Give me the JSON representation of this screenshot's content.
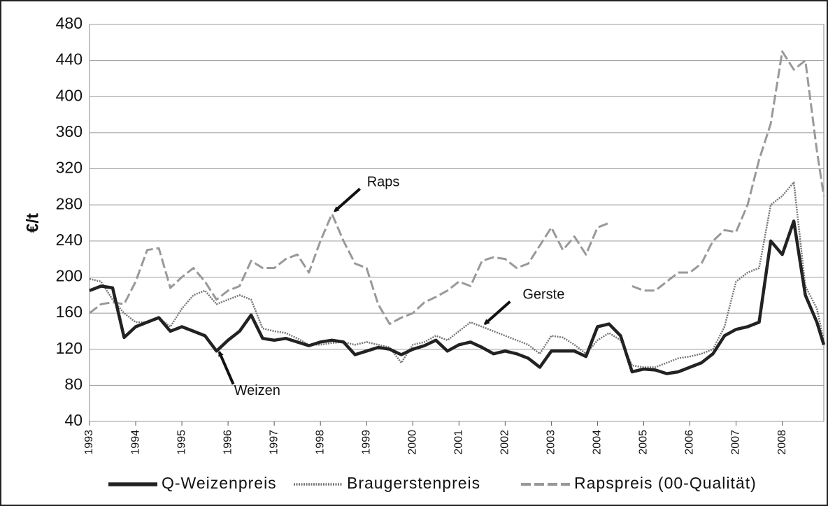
{
  "chart_data": {
    "type": "line",
    "ylabel": "€/t",
    "x": [
      1993,
      1993.25,
      1993.5,
      1993.75,
      1994,
      1994.25,
      1994.5,
      1994.75,
      1995,
      1995.25,
      1995.5,
      1995.75,
      1996,
      1996.25,
      1996.5,
      1996.75,
      1997,
      1997.25,
      1997.5,
      1997.75,
      1998,
      1998.25,
      1998.5,
      1998.75,
      1999,
      1999.25,
      1999.5,
      1999.75,
      2000,
      2000.25,
      2000.5,
      2000.75,
      2001,
      2001.25,
      2001.5,
      2001.75,
      2002,
      2002.25,
      2002.5,
      2002.75,
      2003,
      2003.25,
      2003.5,
      2003.75,
      2004,
      2004.25,
      2004.5,
      2004.75,
      2005,
      2005.25,
      2005.5,
      2005.75,
      2006,
      2006.25,
      2006.5,
      2006.75,
      2007,
      2007.25,
      2007.5,
      2007.75,
      2008,
      2008.25,
      2008.5,
      2008.75,
      2008.9
    ],
    "series": [
      {
        "name": "Q-Weizenpreis",
        "color": "#222222",
        "values": [
          185,
          190,
          188,
          133,
          145,
          150,
          155,
          140,
          145,
          140,
          135,
          118,
          130,
          140,
          158,
          132,
          130,
          132,
          128,
          124,
          128,
          130,
          128,
          114,
          118,
          122,
          120,
          114,
          120,
          124,
          130,
          118,
          125,
          128,
          122,
          115,
          118,
          115,
          110,
          100,
          118,
          118,
          118,
          112,
          145,
          148,
          135,
          95,
          98,
          97,
          93,
          95,
          100,
          105,
          115,
          135,
          142,
          145,
          150,
          240,
          225,
          262,
          180,
          150,
          125
        ]
      },
      {
        "name": "Braugerstenpreis",
        "color": "#777777",
        "values": [
          198,
          195,
          175,
          160,
          150,
          150,
          155,
          145,
          165,
          180,
          185,
          170,
          175,
          180,
          175,
          143,
          140,
          138,
          132,
          125,
          125,
          127,
          128,
          125,
          128,
          125,
          122,
          105,
          125,
          128,
          135,
          130,
          140,
          150,
          145,
          140,
          135,
          130,
          125,
          115,
          135,
          133,
          125,
          115,
          130,
          138,
          130,
          102,
          100,
          100,
          105,
          110,
          112,
          115,
          120,
          145,
          195,
          205,
          210,
          280,
          290,
          305,
          190,
          165,
          130
        ]
      },
      {
        "name": "Rapspreis (00-Qualität)",
        "color": "#999999",
        "values": [
          160,
          170,
          172,
          170,
          195,
          230,
          232,
          188,
          200,
          210,
          195,
          175,
          185,
          190,
          218,
          210,
          210,
          220,
          225,
          205,
          240,
          270,
          240,
          215,
          210,
          170,
          148,
          155,
          160,
          172,
          178,
          185,
          195,
          190,
          218,
          222,
          220,
          210,
          215,
          235,
          255,
          230,
          245,
          225,
          255,
          260,
          null,
          190,
          185,
          185,
          195,
          205,
          205,
          215,
          240,
          252,
          250,
          280,
          330,
          370,
          450,
          430,
          440,
          340,
          290
        ]
      }
    ],
    "annotations": [
      {
        "text": "Raps",
        "x": 1998.25,
        "y": 270
      },
      {
        "text": "Gerste",
        "x": 2001.5,
        "y": 145
      },
      {
        "text": "Weizen",
        "x": 1995.75,
        "y": 120
      }
    ],
    "xlim": [
      1993,
      2008.9
    ],
    "xticks": [
      1993,
      1994,
      1995,
      1996,
      1997,
      1998,
      1999,
      2000,
      2001,
      2002,
      2003,
      2004,
      2005,
      2006,
      2007,
      2008
    ],
    "ylim": [
      40,
      480
    ],
    "yticks": [
      40,
      80,
      120,
      160,
      200,
      240,
      280,
      320,
      360,
      400,
      440,
      480
    ],
    "grid": true,
    "legend": "bottom"
  }
}
